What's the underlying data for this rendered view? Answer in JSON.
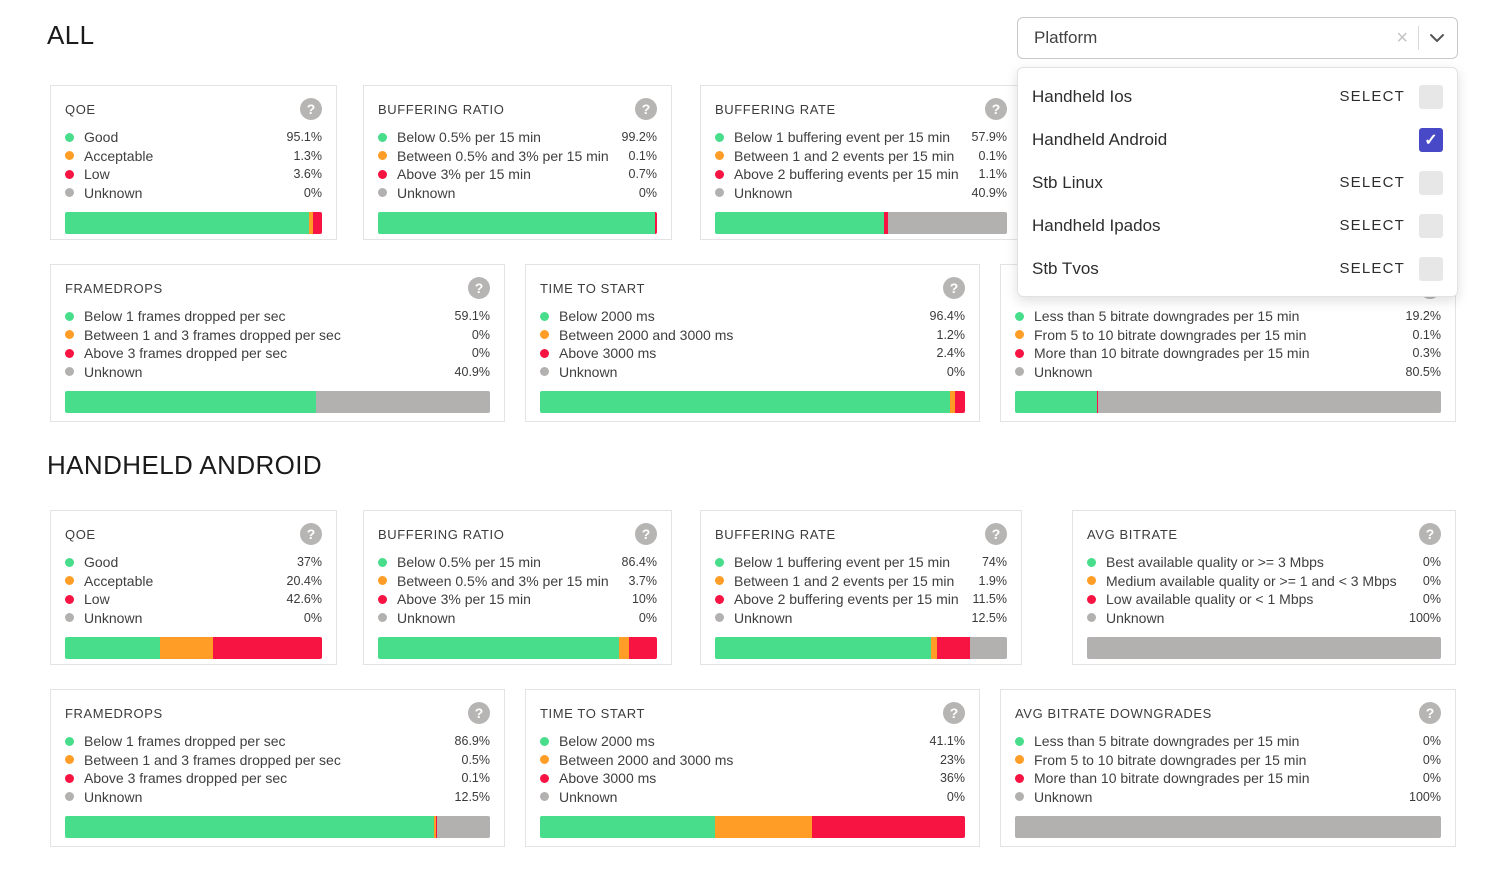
{
  "headings": {
    "all": "ALL",
    "android": "HANDHELD ANDROID"
  },
  "colors": {
    "good": "#47dd8a",
    "acceptable": "#ff9d26",
    "low": "#f71443",
    "unknown": "#b3b0b0",
    "checkbox_checked": "#4749c6"
  },
  "dropdown": {
    "placeholder": "Platform",
    "clear_icon": "×",
    "check_icon": "✓",
    "options": [
      {
        "label": "Handheld Ios",
        "action": "SELECT",
        "checked": false
      },
      {
        "label": "Handheld Android",
        "action": "",
        "checked": true
      },
      {
        "label": "Stb Linux",
        "action": "SELECT",
        "checked": false
      },
      {
        "label": "Handheld Ipados",
        "action": "SELECT",
        "checked": false
      },
      {
        "label": "Stb Tvos",
        "action": "SELECT",
        "checked": false
      }
    ]
  },
  "help_icon_glyph": "?",
  "sections": [
    {
      "heading": "ALL",
      "slug": "all",
      "rows": [
        [
          {
            "title": "QOE",
            "slug": "qoe",
            "items": [
              {
                "label": "Good",
                "value": "95.1%",
                "pct": 95.1,
                "color": "good"
              },
              {
                "label": "Acceptable",
                "value": "1.3%",
                "pct": 1.3,
                "color": "acceptable"
              },
              {
                "label": "Low",
                "value": "3.6%",
                "pct": 3.6,
                "color": "low"
              },
              {
                "label": "Unknown",
                "value": "0%",
                "pct": 0,
                "color": "unknown"
              }
            ]
          },
          {
            "title": "BUFFERING RATIO",
            "slug": "buffering-ratio",
            "items": [
              {
                "label": "Below 0.5% per 15 min",
                "value": "99.2%",
                "pct": 99.2,
                "color": "good"
              },
              {
                "label": "Between 0.5% and 3% per 15 min",
                "value": "0.1%",
                "pct": 0.1,
                "color": "acceptable"
              },
              {
                "label": "Above 3% per 15 min",
                "value": "0.7%",
                "pct": 0.7,
                "color": "low"
              },
              {
                "label": "Unknown",
                "value": "0%",
                "pct": 0,
                "color": "unknown"
              }
            ]
          },
          {
            "title": "BUFFERING RATE",
            "slug": "buffering-rate",
            "items": [
              {
                "label": "Below 1 buffering event per 15 min",
                "value": "57.9%",
                "pct": 57.9,
                "color": "good"
              },
              {
                "label": "Between 1 and 2 events per 15 min",
                "value": "0.1%",
                "pct": 0.1,
                "color": "acceptable"
              },
              {
                "label": "Above 2 buffering events per 15 min",
                "value": "1.1%",
                "pct": 1.1,
                "color": "low"
              },
              {
                "label": "Unknown",
                "value": "40.9%",
                "pct": 40.9,
                "color": "unknown"
              }
            ]
          }
        ],
        [
          {
            "title": "FRAMEDROPS",
            "slug": "framedrops",
            "items": [
              {
                "label": "Below 1 frames dropped per sec",
                "value": "59.1%",
                "pct": 59.1,
                "color": "good"
              },
              {
                "label": "Between 1 and 3 frames dropped per sec",
                "value": "0%",
                "pct": 0,
                "color": "acceptable"
              },
              {
                "label": "Above 3 frames dropped per sec",
                "value": "0%",
                "pct": 0,
                "color": "low"
              },
              {
                "label": "Unknown",
                "value": "40.9%",
                "pct": 40.9,
                "color": "unknown"
              }
            ]
          },
          {
            "title": "TIME TO START",
            "slug": "time-to-start",
            "items": [
              {
                "label": "Below 2000 ms",
                "value": "96.4%",
                "pct": 96.4,
                "color": "good"
              },
              {
                "label": "Between 2000 and 3000 ms",
                "value": "1.2%",
                "pct": 1.2,
                "color": "acceptable"
              },
              {
                "label": "Above 3000 ms",
                "value": "2.4%",
                "pct": 2.4,
                "color": "low"
              },
              {
                "label": "Unknown",
                "value": "0%",
                "pct": 0,
                "color": "unknown"
              }
            ]
          },
          {
            "title": "",
            "slug": "avg-bitrate-downgrades",
            "items": [
              {
                "label": "Less than 5 bitrate downgrades per 15 min",
                "value": "19.2%",
                "pct": 19.2,
                "color": "good"
              },
              {
                "label": "From 5 to 10 bitrate downgrades per 15 min",
                "value": "0.1%",
                "pct": 0.1,
                "color": "acceptable"
              },
              {
                "label": "More than 10 bitrate downgrades per 15 min",
                "value": "0.3%",
                "pct": 0.3,
                "color": "low"
              },
              {
                "label": "Unknown",
                "value": "80.5%",
                "pct": 80.5,
                "color": "unknown"
              }
            ]
          }
        ]
      ]
    },
    {
      "heading": "HANDHELD ANDROID",
      "slug": "handheld-android",
      "rows": [
        [
          {
            "title": "QOE",
            "slug": "qoe",
            "items": [
              {
                "label": "Good",
                "value": "37%",
                "pct": 37,
                "color": "good"
              },
              {
                "label": "Acceptable",
                "value": "20.4%",
                "pct": 20.4,
                "color": "acceptable"
              },
              {
                "label": "Low",
                "value": "42.6%",
                "pct": 42.6,
                "color": "low"
              },
              {
                "label": "Unknown",
                "value": "0%",
                "pct": 0,
                "color": "unknown"
              }
            ]
          },
          {
            "title": "BUFFERING RATIO",
            "slug": "buffering-ratio",
            "items": [
              {
                "label": "Below 0.5% per 15 min",
                "value": "86.4%",
                "pct": 86.4,
                "color": "good"
              },
              {
                "label": "Between 0.5% and 3% per 15 min",
                "value": "3.7%",
                "pct": 3.7,
                "color": "acceptable"
              },
              {
                "label": "Above 3% per 15 min",
                "value": "10%",
                "pct": 10,
                "color": "low"
              },
              {
                "label": "Unknown",
                "value": "0%",
                "pct": 0,
                "color": "unknown"
              }
            ]
          },
          {
            "title": "BUFFERING RATE",
            "slug": "buffering-rate",
            "items": [
              {
                "label": "Below 1 buffering event per 15 min",
                "value": "74%",
                "pct": 74,
                "color": "good"
              },
              {
                "label": "Between 1 and 2 events per 15 min",
                "value": "1.9%",
                "pct": 1.9,
                "color": "acceptable"
              },
              {
                "label": "Above 2 buffering events per 15 min",
                "value": "11.5%",
                "pct": 11.5,
                "color": "low"
              },
              {
                "label": "Unknown",
                "value": "12.5%",
                "pct": 12.5,
                "color": "unknown"
              }
            ]
          },
          {
            "title": "AVG BITRATE",
            "slug": "avg-bitrate",
            "items": [
              {
                "label": "Best available quality or >= 3 Mbps",
                "value": "0%",
                "pct": 0,
                "color": "good"
              },
              {
                "label": "Medium available quality or >= 1 and < 3 Mbps",
                "value": "0%",
                "pct": 0,
                "color": "acceptable"
              },
              {
                "label": "Low available quality or < 1 Mbps",
                "value": "0%",
                "pct": 0,
                "color": "low"
              },
              {
                "label": "Unknown",
                "value": "100%",
                "pct": 100,
                "color": "unknown"
              }
            ]
          }
        ],
        [
          {
            "title": "FRAMEDROPS",
            "slug": "framedrops",
            "items": [
              {
                "label": "Below 1 frames dropped per sec",
                "value": "86.9%",
                "pct": 86.9,
                "color": "good"
              },
              {
                "label": "Between 1 and 3 frames dropped per sec",
                "value": "0.5%",
                "pct": 0.5,
                "color": "acceptable"
              },
              {
                "label": "Above 3 frames dropped per sec",
                "value": "0.1%",
                "pct": 0.1,
                "color": "low"
              },
              {
                "label": "Unknown",
                "value": "12.5%",
                "pct": 12.5,
                "color": "unknown"
              }
            ]
          },
          {
            "title": "TIME TO START",
            "slug": "time-to-start",
            "items": [
              {
                "label": "Below 2000 ms",
                "value": "41.1%",
                "pct": 41.1,
                "color": "good"
              },
              {
                "label": "Between 2000 and 3000 ms",
                "value": "23%",
                "pct": 23,
                "color": "acceptable"
              },
              {
                "label": "Above 3000 ms",
                "value": "36%",
                "pct": 36,
                "color": "low"
              },
              {
                "label": "Unknown",
                "value": "0%",
                "pct": 0,
                "color": "unknown"
              }
            ]
          },
          {
            "title": "AVG BITRATE DOWNGRADES",
            "slug": "avg-bitrate-downgrades",
            "items": [
              {
                "label": "Less than 5 bitrate downgrades per 15 min",
                "value": "0%",
                "pct": 0,
                "color": "good"
              },
              {
                "label": "From 5 to 10 bitrate downgrades per 15 min",
                "value": "0%",
                "pct": 0,
                "color": "acceptable"
              },
              {
                "label": "More than 10 bitrate downgrades per 15 min",
                "value": "0%",
                "pct": 0,
                "color": "low"
              },
              {
                "label": "Unknown",
                "value": "100%",
                "pct": 100,
                "color": "unknown"
              }
            ]
          }
        ]
      ]
    }
  ]
}
